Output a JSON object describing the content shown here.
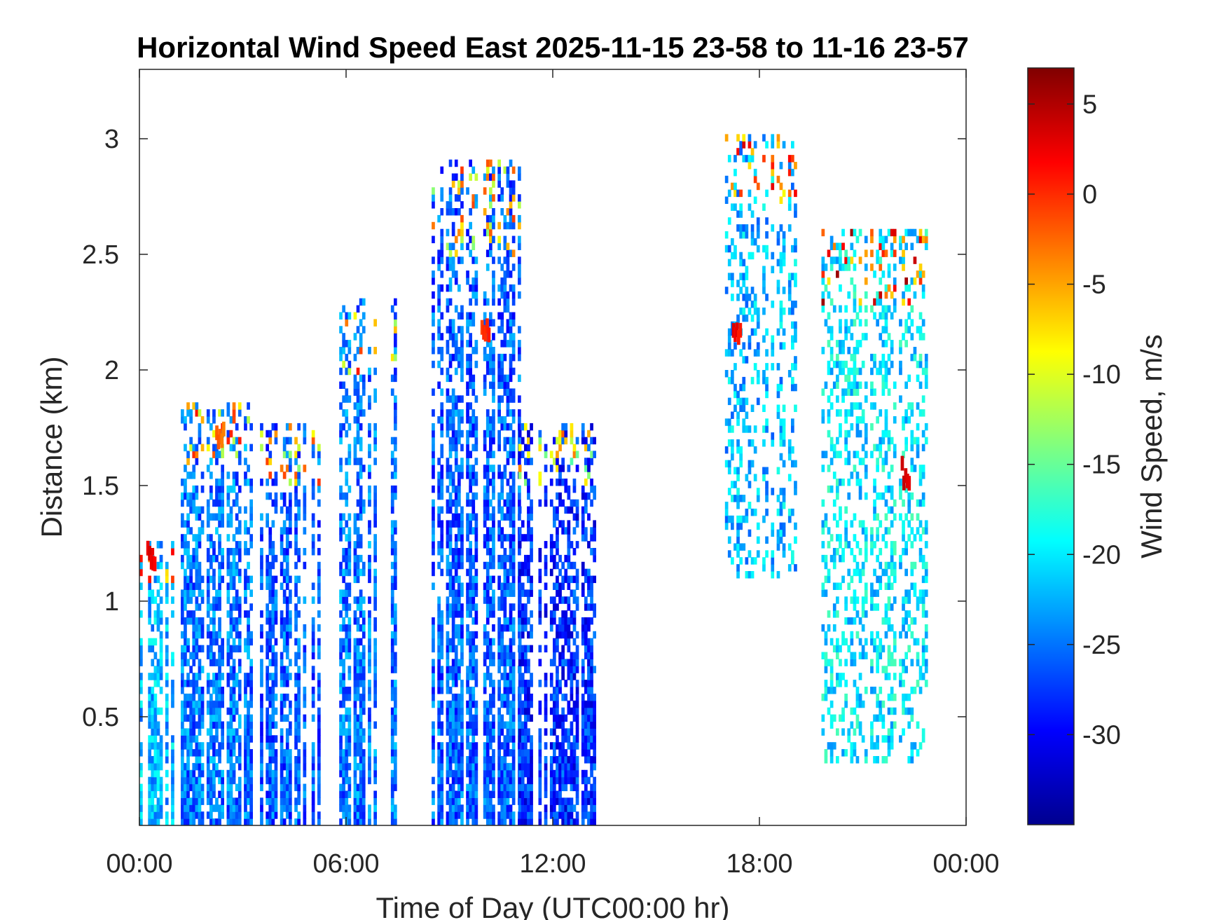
{
  "chart_data": {
    "type": "heatmap",
    "title": "Horizontal Wind Speed East 2025-11-15 23-58 to 11-16 23-57",
    "xlabel": "Time of Day (UTC00:00 hr)",
    "ylabel": "Distance (km)",
    "colorbar_label": "Wind Speed, m/s",
    "colormap": "jet",
    "xlim": [
      0,
      24
    ],
    "ylim": [
      0.03,
      3.3
    ],
    "clim": [
      -35,
      7
    ],
    "x_ticks": [
      0,
      6,
      12,
      18,
      24
    ],
    "x_tick_labels": [
      "00:00",
      "06:00",
      "12:00",
      "18:00",
      "00:00"
    ],
    "y_ticks": [
      0.5,
      1,
      1.5,
      2,
      2.5,
      3
    ],
    "y_tick_labels": [
      "0.5",
      "1",
      "1.5",
      "2",
      "2.5",
      "3"
    ],
    "colorbar_ticks": [
      5,
      0,
      -5,
      -10,
      -15,
      -20,
      -25,
      -30
    ],
    "colorbar_tick_labels": [
      "5",
      "0",
      "-5",
      "-10",
      "-15",
      "-20",
      "-25",
      "-30"
    ],
    "grid": false,
    "regions": [
      {
        "x": [
          0.0,
          1.0
        ],
        "y_top": 1.25,
        "typical": -22,
        "note": "low layer, warm streak near 1.1-1.4 km"
      },
      {
        "x": [
          1.2,
          3.2
        ],
        "y_top": 1.85,
        "typical": -25,
        "note": "streak near 1.7 km around -5 m/s"
      },
      {
        "x": [
          3.5,
          5.2
        ],
        "y_top": 1.75,
        "typical": -26
      },
      {
        "x": [
          5.8,
          7.4
        ],
        "y_top": 2.3,
        "typical": -25
      },
      {
        "x": [
          8.4,
          11.0
        ],
        "y_top": 2.9,
        "typical": -26
      },
      {
        "x": [
          11.0,
          13.2
        ],
        "y_top": 1.75,
        "typical": -28
      },
      {
        "x": [
          17.0,
          19.0
        ],
        "y_range": [
          1.1,
          3.0
        ],
        "typical": -22
      },
      {
        "x": [
          19.8,
          23.0
        ],
        "y_range": [
          0.3,
          2.6
        ],
        "typical": -20
      }
    ],
    "notable_values": [
      {
        "x": 0.3,
        "y": 1.2,
        "value": 3
      },
      {
        "x": 2.3,
        "y": 1.7,
        "value": -3
      },
      {
        "x": 10.0,
        "y": 2.2,
        "value": 0
      },
      {
        "x": 17.3,
        "y": 2.15,
        "value": 2
      },
      {
        "x": 22.2,
        "y": 1.55,
        "value": 3
      }
    ]
  }
}
